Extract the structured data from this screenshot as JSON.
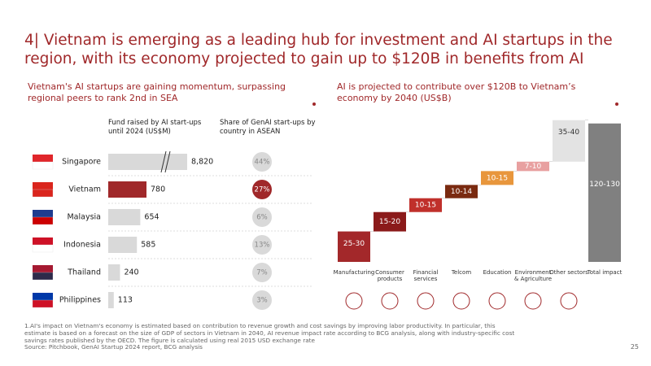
{
  "title": "4| Vietnam is emerging as a leading hub for investment and AI startups in the region, with its economy projected to gain up to $120B in benefits from AI",
  "chart_data": [
    {
      "type": "bar",
      "orientation": "horizontal",
      "subtitle": "Vietnam's AI startups are gaining momentum, surpassing regional peers to rank 2nd in SEA",
      "categories": [
        "Singapore",
        "Vietnam",
        "Malaysia",
        "Indonesia",
        "Thailand",
        "Philippines"
      ],
      "axis_break": true,
      "series": [
        {
          "name": "Fund raised by AI start-ups until 2024 (US$M)",
          "values": [
            8820,
            780,
            654,
            585,
            240,
            113
          ],
          "value_labels": [
            "8,820",
            "780",
            "654",
            "585",
            "240",
            "113"
          ],
          "colors": [
            "#d9d9d9",
            "#a0282a",
            "#d9d9d9",
            "#d9d9d9",
            "#d9d9d9",
            "#d9d9d9"
          ]
        },
        {
          "name": "Share of GenAI start-ups by country in ASEAN",
          "values": [
            44,
            27,
            6,
            13,
            7,
            3
          ],
          "value_labels": [
            "44%",
            "27%",
            "6%",
            "13%",
            "7%",
            "3%"
          ],
          "colors": [
            "#d9d9d9",
            "#a0282a",
            "#d9d9d9",
            "#d9d9d9",
            "#d9d9d9",
            "#d9d9d9"
          ]
        }
      ]
    },
    {
      "type": "waterfall",
      "subtitle": "AI is projected to contribute over $120B to Vietnam’s economy by 2040 (US$B)",
      "categories": [
        "Manufacturing",
        "Consumer products",
        "Financial services",
        "Telcom",
        "Education",
        "Environment & Agriculture",
        "Other sectors",
        "Total impact"
      ],
      "low": [
        25,
        15,
        10,
        10,
        10,
        7,
        35,
        120
      ],
      "high": [
        30,
        20,
        15,
        14,
        15,
        10,
        40,
        130
      ],
      "value_labels": [
        "25-30",
        "15-20",
        "10-15",
        "10-14",
        "10-15",
        "7-10",
        "35-40",
        "120-130"
      ],
      "colors": [
        "#a3282a",
        "#8b1a1a",
        "#c0302b",
        "#7a2a10",
        "#e8963c",
        "#e8a0a0",
        "#e3e3e3",
        "#808080"
      ]
    }
  ],
  "footnote": "1.AI's impact on Vietnam's economy is estimated based on contribution to revenue growth and cost savings by improving labor productivity. In particular, this estimate is based on a forecast on the size of GDP of sectors in Vietnam in 2040, AI revenue impact rate according to BCG analysis, along with industry-specific cost savings rates published by the OECD. The figure is calculated using real 2015 USD exchange rate",
  "source": "Source: Pitchbook, GenAI Startup 2024 report, BCG analysis",
  "page_number": "25"
}
